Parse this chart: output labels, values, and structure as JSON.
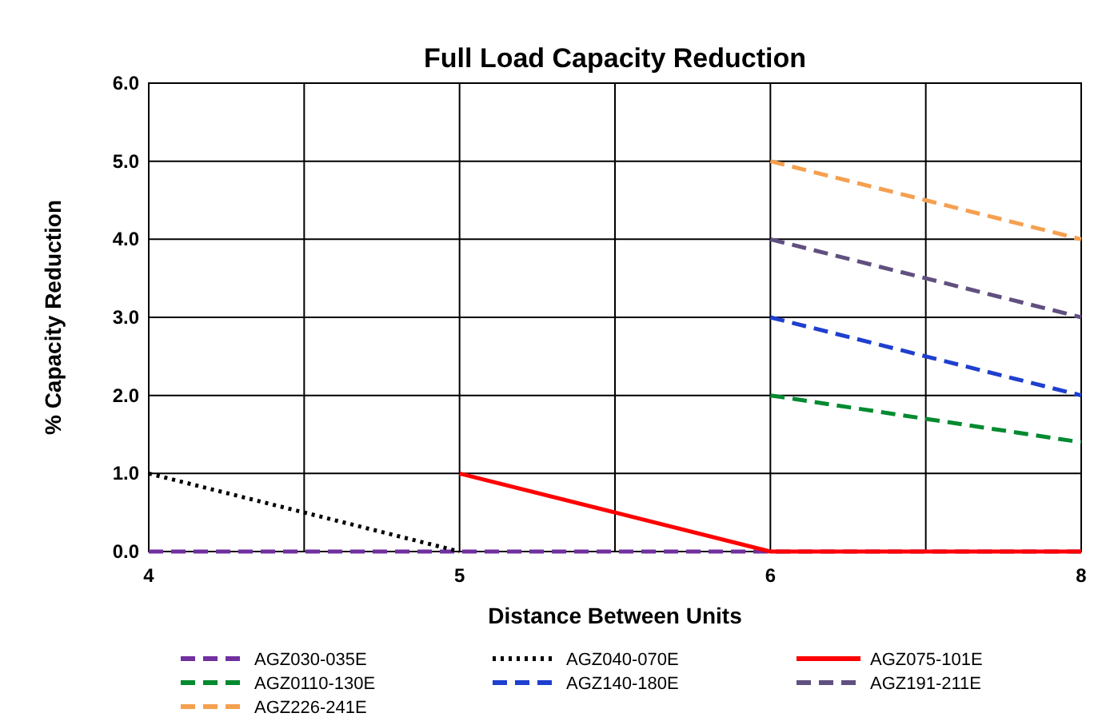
{
  "chart_data": {
    "type": "line",
    "title": "Full Load Capacity Reduction",
    "xlabel": "Distance Between Units",
    "ylabel": "% Capacity Reduction",
    "categories": [
      "4",
      null,
      "5",
      null,
      "6",
      null,
      "8"
    ],
    "ylim": [
      0,
      6
    ],
    "yticks": [
      {
        "value": 0,
        "label": "0.0"
      },
      {
        "value": 1,
        "label": "1.0"
      },
      {
        "value": 2,
        "label": "2.0"
      },
      {
        "value": 3,
        "label": "3.0"
      },
      {
        "value": 4,
        "label": "4.0"
      },
      {
        "value": 5,
        "label": "5.0"
      },
      {
        "value": 6,
        "label": "6.0"
      }
    ],
    "grid": true,
    "legend": "bottom",
    "marker": "none",
    "series": [
      {
        "name": "AGZ030-035E",
        "color": "#7030a0",
        "line_style": "dashed",
        "values": [
          0,
          0,
          0,
          0,
          0,
          0,
          0
        ]
      },
      {
        "name": "AGZ040-070E",
        "color": "#000000",
        "line_style": "dotted",
        "values": [
          1,
          0.5,
          0,
          null,
          null,
          null,
          null
        ]
      },
      {
        "name": "AGZ075-101E",
        "color": "#ff0000",
        "line_style": "solid",
        "values": [
          null,
          null,
          1,
          0.5,
          0,
          0,
          0
        ]
      },
      {
        "name": "AGZ0110-130E",
        "color": "#008a30",
        "line_style": "dashed",
        "values": [
          null,
          null,
          null,
          null,
          2,
          1.7,
          1.4
        ]
      },
      {
        "name": "AGZ140-180E",
        "color": "#1f3fcf",
        "line_style": "dashed",
        "values": [
          null,
          null,
          null,
          null,
          3,
          2.5,
          2
        ]
      },
      {
        "name": "AGZ191-211E",
        "color": "#605080",
        "line_style": "dashed",
        "values": [
          null,
          null,
          null,
          null,
          4,
          3.5,
          3
        ]
      },
      {
        "name": "AGZ226-241E",
        "color": "#f5a050",
        "line_style": "dashed",
        "values": [
          null,
          null,
          null,
          null,
          5,
          4.5,
          4
        ]
      }
    ]
  }
}
